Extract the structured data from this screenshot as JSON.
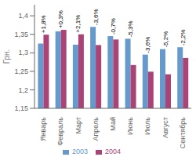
{
  "chart_data": {
    "type": "bar",
    "categories": [
      "Январь",
      "Февраль",
      "Март",
      "Апрель",
      "Май",
      "Июнь",
      "Июль",
      "Август",
      "Сентябрь"
    ],
    "series": [
      {
        "name": "2003",
        "color": "#6699cc",
        "values": [
          1.325,
          1.358,
          1.322,
          1.37,
          1.345,
          1.338,
          1.295,
          1.31,
          1.315
        ]
      },
      {
        "name": "2004",
        "color": "#aa4477",
        "values": [
          1.349,
          1.362,
          1.35,
          1.321,
          1.336,
          1.267,
          1.249,
          1.242,
          1.286
        ]
      }
    ],
    "annotations": [
      {
        "category": "Январь",
        "text": "+1,8%"
      },
      {
        "category": "Февраль",
        "text": "+0,3%"
      },
      {
        "category": "Март",
        "text": "+2,1%"
      },
      {
        "category": "Апрель",
        "text": "-3,6%"
      },
      {
        "category": "Май",
        "text": "-0,7%"
      },
      {
        "category": "Июнь",
        "text": "-5,3%"
      },
      {
        "category": "Июль",
        "text": "-3,6%"
      },
      {
        "category": "Август",
        "text": "-5,2%"
      },
      {
        "category": "Сентябрь",
        "text": "-2,2%"
      }
    ],
    "ylabel": "Грн.",
    "ylim": [
      1.15,
      1.43
    ],
    "yticks": [
      {
        "value": 1.15,
        "label": "1,15"
      },
      {
        "value": 1.2,
        "label": "1,2"
      },
      {
        "value": 1.25,
        "label": "1,25"
      },
      {
        "value": 1.3,
        "label": "1,3"
      },
      {
        "value": 1.35,
        "label": "1,35"
      },
      {
        "value": 1.4,
        "label": "1,4"
      }
    ],
    "grid": false,
    "legend": "bottom"
  }
}
